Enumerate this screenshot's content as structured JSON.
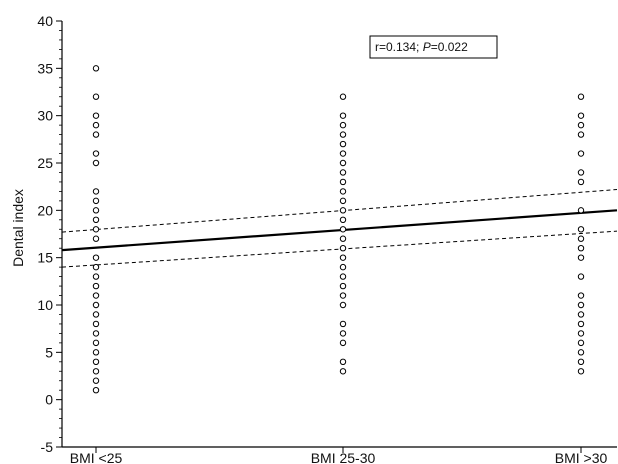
{
  "chart_data": {
    "type": "scatter",
    "title": "",
    "xlabel": "",
    "ylabel": "Dental index",
    "categories": [
      "BMI <25",
      "BMI 25-30",
      "BMI >30"
    ],
    "ylim": [
      -5,
      40
    ],
    "yticks": [
      -5,
      0,
      5,
      10,
      15,
      20,
      25,
      30,
      35,
      40
    ],
    "grid": false,
    "annotation": {
      "prefix": "r=0.134; ",
      "p_label": "P",
      "suffix": "=0.022",
      "placement": "top-right"
    },
    "series": [
      {
        "category": "BMI <25",
        "values": [
          1,
          2,
          3,
          4,
          5,
          6,
          7,
          8,
          9,
          10,
          11,
          12,
          13,
          14,
          15,
          17,
          18,
          19,
          20,
          21,
          22,
          25,
          26,
          28,
          29,
          30,
          32,
          35
        ]
      },
      {
        "category": "BMI 25-30",
        "values": [
          3,
          4,
          6,
          7,
          8,
          10,
          11,
          12,
          13,
          14,
          15,
          16,
          17,
          18,
          19,
          20,
          21,
          22,
          23,
          24,
          25,
          26,
          27,
          28,
          29,
          30,
          32
        ]
      },
      {
        "category": "BMI >30",
        "values": [
          3,
          4,
          5,
          6,
          7,
          8,
          9,
          10,
          11,
          13,
          15,
          16,
          17,
          18,
          20,
          23,
          24,
          26,
          28,
          29,
          30,
          32
        ]
      }
    ],
    "regression": {
      "start": 15.8,
      "end": 20.0
    },
    "ci_upper": [
      17.7,
      22.2
    ],
    "ci_lower": [
      14.0,
      17.8
    ],
    "colors": {
      "line": "#000000",
      "marker": "#000000",
      "background": "#ffffff"
    }
  }
}
